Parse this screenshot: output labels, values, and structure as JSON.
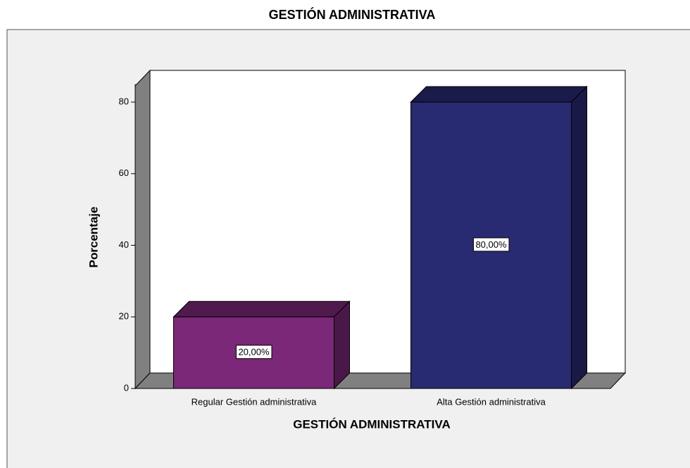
{
  "chart_data": {
    "type": "bar3d",
    "title": "GESTIÓN ADMINISTRATIVA",
    "x_label": "GESTIÓN ADMINISTRATIVA",
    "y_label": "Porcentaje",
    "categories": [
      "Regular Gestión administrativa",
      "Alta Gestión administrativa"
    ],
    "values": [
      20,
      80
    ],
    "value_labels": [
      "20,00%",
      "80,00%"
    ],
    "colors": [
      "#7b2878",
      "#282a72"
    ],
    "ylim": [
      0,
      85
    ],
    "yticks": [
      0,
      20,
      40,
      60,
      80
    ]
  }
}
